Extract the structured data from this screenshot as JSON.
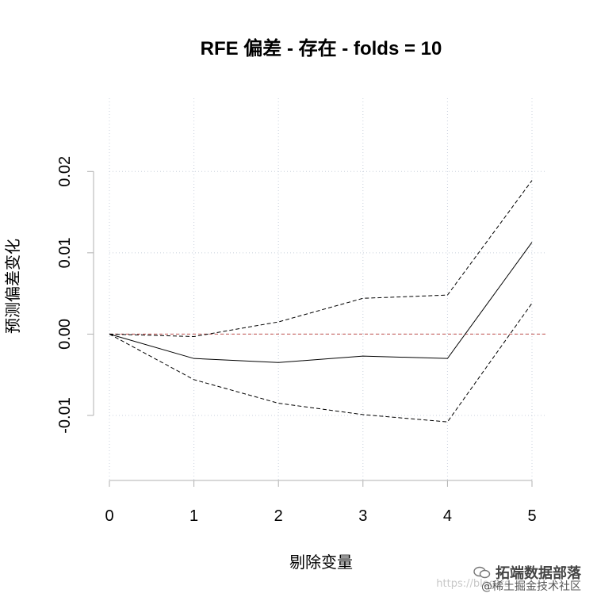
{
  "chart_data": {
    "type": "line",
    "title": "RFE 偏差 - 存在 - folds = 10",
    "xlabel": "剔除变量",
    "ylabel": "预测偏差变化",
    "x": [
      0,
      1,
      2,
      3,
      4,
      5
    ],
    "xticks": [
      "0",
      "1",
      "2",
      "3",
      "4",
      "5"
    ],
    "yticks": [
      -0.01,
      0.0,
      0.01,
      0.02
    ],
    "ytick_labels": [
      "-0.01",
      "0.00",
      "0.01",
      "0.02"
    ],
    "xlim": [
      0,
      5
    ],
    "ylim": [
      -0.018,
      0.029
    ],
    "grid": true,
    "grid_color": "#c8d0dc",
    "reference_line": {
      "y": 0,
      "color": "#c0504d"
    },
    "series": [
      {
        "style": "solid",
        "color": "#000000",
        "values": [
          0.0,
          -0.003,
          -0.0035,
          -0.0027,
          -0.003,
          0.0113
        ]
      },
      {
        "style": "dashed",
        "color": "#000000",
        "values": [
          0.0,
          -0.0003,
          0.0015,
          0.0044,
          0.0048,
          0.0189
        ]
      },
      {
        "style": "dashed",
        "color": "#000000",
        "values": [
          0.0,
          -0.0056,
          -0.0085,
          -0.0099,
          -0.0108,
          0.0038
        ]
      }
    ]
  },
  "watermark": {
    "main": "拓端数据部落",
    "url": "https://blog.cs",
    "sub": "@稀土掘金技术社区"
  }
}
